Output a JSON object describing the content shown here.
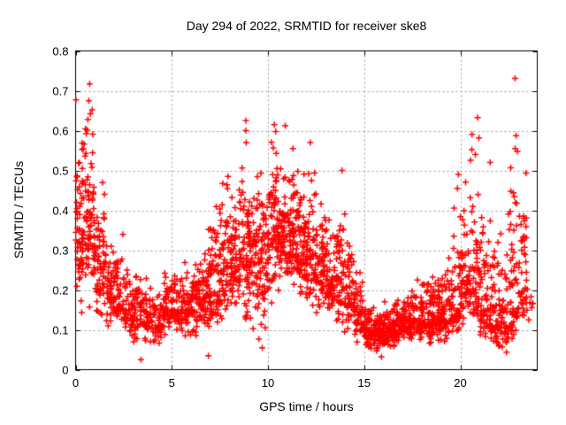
{
  "chart_data": {
    "type": "scatter",
    "title": "Day 294 of 2022, SRMTID for receiver ske8",
    "xlabel": "GPS time / hours",
    "ylabel": "SRMTID / TECUs",
    "xlim": [
      0,
      24
    ],
    "ylim": [
      0,
      0.8
    ],
    "xticks": [
      0,
      5,
      10,
      15,
      20
    ],
    "xtick_labels": [
      "0",
      "5",
      "10",
      "15",
      "20"
    ],
    "yticks": [
      0,
      0.1,
      0.2,
      0.3,
      0.4,
      0.5,
      0.6,
      0.7,
      0.8
    ],
    "ytick_labels": [
      "0",
      "0.1",
      "0.2",
      "0.3",
      "0.4",
      "0.5",
      "0.6",
      "0.7",
      "0.8"
    ],
    "grid": true,
    "legend": null,
    "marker": {
      "shape": "plus",
      "color": "#ff0000",
      "size": 7,
      "stroke": 1.5
    },
    "colors": {
      "background": "#ffffff",
      "axis": "#000000",
      "grid": "#9a9a9a",
      "text": "#000000"
    },
    "sampler": {
      "seed": 1337,
      "x_snap_per_hour": 120,
      "p_up": 0.55
    },
    "density_bins": [
      [
        0.0,
        0.5,
        70,
        0.1,
        0.68,
        0.32
      ],
      [
        0.5,
        1.0,
        75,
        0.12,
        0.72,
        0.34
      ],
      [
        1.0,
        1.5,
        60,
        0.1,
        0.5,
        0.22
      ],
      [
        1.5,
        2.0,
        50,
        0.09,
        0.42,
        0.18
      ],
      [
        2.0,
        2.5,
        48,
        0.08,
        0.36,
        0.16
      ],
      [
        2.5,
        3.0,
        45,
        0.07,
        0.3,
        0.14
      ],
      [
        3.0,
        3.5,
        45,
        0.03,
        0.28,
        0.13
      ],
      [
        3.5,
        4.0,
        42,
        0.04,
        0.26,
        0.12
      ],
      [
        4.0,
        4.5,
        42,
        0.05,
        0.22,
        0.12
      ],
      [
        4.5,
        5.0,
        45,
        0.08,
        0.26,
        0.14
      ],
      [
        5.0,
        5.5,
        48,
        0.09,
        0.28,
        0.15
      ],
      [
        5.5,
        6.0,
        50,
        0.06,
        0.3,
        0.15
      ],
      [
        6.0,
        6.5,
        55,
        0.06,
        0.33,
        0.16
      ],
      [
        6.5,
        7.0,
        60,
        0.04,
        0.38,
        0.17
      ],
      [
        7.0,
        7.5,
        58,
        0.08,
        0.53,
        0.2
      ],
      [
        7.5,
        8.0,
        58,
        0.1,
        0.57,
        0.22
      ],
      [
        8.0,
        8.5,
        60,
        0.1,
        0.5,
        0.25
      ],
      [
        8.5,
        9.0,
        65,
        0.05,
        0.63,
        0.28
      ],
      [
        9.0,
        9.5,
        65,
        0.08,
        0.5,
        0.28
      ],
      [
        9.5,
        10.0,
        65,
        0.05,
        0.52,
        0.27
      ],
      [
        10.0,
        10.5,
        70,
        0.15,
        0.63,
        0.32
      ],
      [
        10.5,
        11.0,
        70,
        0.15,
        0.56,
        0.33
      ],
      [
        11.0,
        11.5,
        70,
        0.15,
        0.55,
        0.32
      ],
      [
        11.5,
        12.0,
        70,
        0.15,
        0.52,
        0.3
      ],
      [
        12.0,
        12.5,
        65,
        0.12,
        0.57,
        0.28
      ],
      [
        12.5,
        13.0,
        60,
        0.12,
        0.5,
        0.26
      ],
      [
        13.0,
        13.5,
        58,
        0.1,
        0.45,
        0.22
      ],
      [
        13.5,
        14.0,
        55,
        0.08,
        0.5,
        0.2
      ],
      [
        14.0,
        14.5,
        52,
        0.08,
        0.35,
        0.17
      ],
      [
        14.5,
        15.0,
        50,
        0.05,
        0.3,
        0.13
      ],
      [
        15.0,
        15.5,
        55,
        0.04,
        0.2,
        0.1
      ],
      [
        15.5,
        16.0,
        60,
        0.03,
        0.17,
        0.09
      ],
      [
        16.0,
        16.5,
        60,
        0.03,
        0.18,
        0.09
      ],
      [
        16.5,
        17.0,
        58,
        0.05,
        0.2,
        0.1
      ],
      [
        17.0,
        17.5,
        56,
        0.05,
        0.22,
        0.11
      ],
      [
        17.5,
        18.0,
        56,
        0.05,
        0.25,
        0.12
      ],
      [
        18.0,
        18.5,
        56,
        0.05,
        0.28,
        0.12
      ],
      [
        18.5,
        19.0,
        58,
        0.05,
        0.3,
        0.13
      ],
      [
        19.0,
        19.5,
        55,
        0.06,
        0.35,
        0.13
      ],
      [
        19.5,
        20.0,
        55,
        0.08,
        0.49,
        0.15
      ],
      [
        20.0,
        20.5,
        58,
        0.1,
        0.52,
        0.22
      ],
      [
        20.5,
        21.0,
        55,
        0.08,
        0.63,
        0.2
      ],
      [
        21.0,
        21.5,
        55,
        0.06,
        0.5,
        0.15
      ],
      [
        21.5,
        22.0,
        55,
        0.04,
        0.42,
        0.12
      ],
      [
        22.0,
        22.5,
        55,
        0.04,
        0.38,
        0.11
      ],
      [
        22.5,
        23.0,
        58,
        0.05,
        0.73,
        0.16
      ],
      [
        23.0,
        23.5,
        45,
        0.08,
        0.55,
        0.2
      ],
      [
        23.5,
        23.9,
        6,
        0.1,
        0.3,
        0.18
      ]
    ],
    "feature_points": [
      [
        0.02,
        0.677
      ],
      [
        0.73,
        0.717
      ],
      [
        0.69,
        0.675
      ],
      [
        0.64,
        0.628
      ],
      [
        0.55,
        0.593
      ],
      [
        0.6,
        0.601
      ],
      [
        3.4,
        0.025
      ],
      [
        6.9,
        0.035
      ],
      [
        8.85,
        0.625
      ],
      [
        8.85,
        0.6
      ],
      [
        8.87,
        0.57
      ],
      [
        9.7,
        0.055
      ],
      [
        10.33,
        0.615
      ],
      [
        10.4,
        0.598
      ],
      [
        10.9,
        0.612
      ],
      [
        11.3,
        0.555
      ],
      [
        12.2,
        0.57
      ],
      [
        13.85,
        0.5
      ],
      [
        15.9,
        0.032
      ],
      [
        19.9,
        0.49
      ],
      [
        19.85,
        0.455
      ],
      [
        20.9,
        0.633
      ],
      [
        20.6,
        0.552
      ],
      [
        20.78,
        0.54
      ],
      [
        21.55,
        0.52
      ],
      [
        22.85,
        0.731
      ],
      [
        22.9,
        0.587
      ],
      [
        22.85,
        0.555
      ],
      [
        22.97,
        0.548
      ],
      [
        23.3,
        0.38
      ]
    ]
  }
}
